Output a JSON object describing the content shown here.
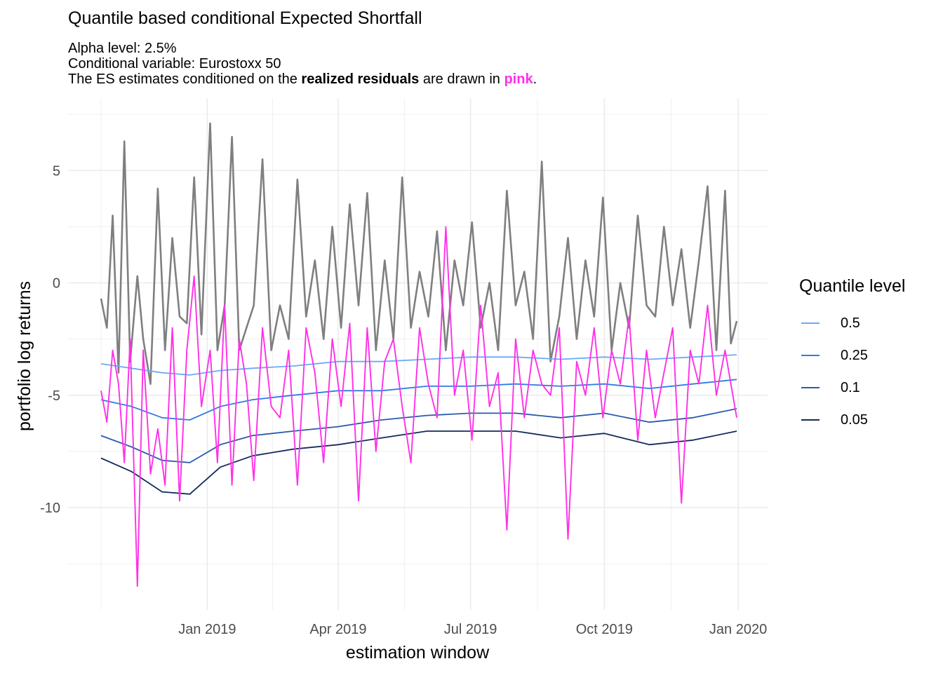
{
  "title": "Quantile based conditional Expected Shortfall",
  "subtitle": {
    "line1": "Alpha level: 2.5%",
    "line2": "Conditional variable: Eurostoxx 50",
    "line3_pre": "The ES estimates conditioned on the ",
    "line3_bold": "realized residuals",
    "line3_mid": " are drawn in ",
    "line3_pink": "pink",
    "line3_post": "."
  },
  "legend": {
    "title": "Quantile level",
    "items": [
      {
        "label": "0.5",
        "color": "#6aaaf7"
      },
      {
        "label": "0.25",
        "color": "#2f7be3"
      },
      {
        "label": "0.1",
        "color": "#2a5aaa"
      },
      {
        "label": "0.05",
        "color": "#132b5c"
      }
    ]
  },
  "colors": {
    "returns": "#7f7f7f",
    "es_realized": "#ff30e8",
    "grid": "#ebebeb",
    "axis_text": "#4d4d4d"
  },
  "chart_data": {
    "type": "line",
    "xlabel": "estimation window",
    "ylabel": "portfolio log returns",
    "x_range": [
      "2018-10-20",
      "2019-12-31"
    ],
    "ylim": [
      -14.5,
      7.5
    ],
    "x_ticks": [
      {
        "date": "2019-01-01",
        "label": "Jan 2019"
      },
      {
        "date": "2019-04-01",
        "label": "Apr 2019"
      },
      {
        "date": "2019-07-01",
        "label": "Jul 2019"
      },
      {
        "date": "2019-10-01",
        "label": "Oct 2019"
      },
      {
        "date": "2020-01-01",
        "label": "Jan 2020"
      }
    ],
    "y_ticks": [
      5,
      0,
      -5,
      -10
    ],
    "y_minor": [
      7.5,
      2.5,
      -2.5,
      -7.5,
      -12.5
    ],
    "grid": true,
    "legend_position": "right",
    "series": [
      {
        "id": "returns",
        "x": [
          "2018-10-20",
          "2018-10-24",
          "2018-10-28",
          "2018-11-01",
          "2018-11-05",
          "2018-11-09",
          "2018-11-14",
          "2018-11-18",
          "2018-11-23",
          "2018-11-28",
          "2018-12-03",
          "2018-12-08",
          "2018-12-13",
          "2018-12-18",
          "2018-12-23",
          "2018-12-28",
          "2019-01-03",
          "2019-01-08",
          "2019-01-13",
          "2019-01-18",
          "2019-01-23",
          "2019-01-28",
          "2019-02-02",
          "2019-02-08",
          "2019-02-14",
          "2019-02-20",
          "2019-02-26",
          "2019-03-04",
          "2019-03-10",
          "2019-03-16",
          "2019-03-22",
          "2019-03-28",
          "2019-04-03",
          "2019-04-09",
          "2019-04-15",
          "2019-04-21",
          "2019-04-27",
          "2019-05-03",
          "2019-05-09",
          "2019-05-15",
          "2019-05-21",
          "2019-05-27",
          "2019-06-02",
          "2019-06-08",
          "2019-06-14",
          "2019-06-20",
          "2019-06-26",
          "2019-07-02",
          "2019-07-08",
          "2019-07-14",
          "2019-07-20",
          "2019-07-26",
          "2019-08-01",
          "2019-08-07",
          "2019-08-13",
          "2019-08-19",
          "2019-08-25",
          "2019-08-31",
          "2019-09-06",
          "2019-09-12",
          "2019-09-18",
          "2019-09-24",
          "2019-09-30",
          "2019-10-06",
          "2019-10-12",
          "2019-10-18",
          "2019-10-24",
          "2019-10-30",
          "2019-11-05",
          "2019-11-11",
          "2019-11-17",
          "2019-11-23",
          "2019-11-29",
          "2019-12-05",
          "2019-12-11",
          "2019-12-17",
          "2019-12-23",
          "2019-12-27",
          "2019-12-31"
        ],
        "y": [
          -0.7,
          -2.0,
          3.0,
          -4.0,
          6.3,
          -3.5,
          0.3,
          -2.5,
          -4.5,
          4.2,
          -3.0,
          2.0,
          -1.5,
          -1.8,
          4.7,
          -2.3,
          7.1,
          -3.0,
          -1.0,
          6.5,
          -3.0,
          -2.0,
          -1.0,
          5.5,
          -3.0,
          -1.0,
          -2.5,
          4.6,
          -1.5,
          1.0,
          -2.5,
          2.5,
          -2.0,
          3.5,
          -1.0,
          4.0,
          -3.0,
          1.0,
          -2.5,
          4.7,
          -2.0,
          0.5,
          -1.5,
          2.3,
          -3.0,
          1.0,
          -1.0,
          2.7,
          -2.0,
          0.0,
          -3.0,
          4.1,
          -1.0,
          0.5,
          -2.5,
          5.4,
          -3.5,
          -1.5,
          2.0,
          -2.5,
          1.0,
          -1.5,
          3.8,
          -3.0,
          0.0,
          -2.0,
          3.0,
          -1.0,
          -1.5,
          2.5,
          -1.0,
          1.5,
          -2.0,
          1.0,
          4.3,
          -3.0,
          4.1,
          -2.7,
          -1.7
        ]
      },
      {
        "id": "es_realized",
        "x": [
          "2018-10-20",
          "2018-10-24",
          "2018-10-28",
          "2018-11-01",
          "2018-11-05",
          "2018-11-09",
          "2018-11-14",
          "2018-11-18",
          "2018-11-23",
          "2018-11-28",
          "2018-12-03",
          "2018-12-08",
          "2018-12-13",
          "2018-12-18",
          "2018-12-23",
          "2018-12-28",
          "2019-01-03",
          "2019-01-08",
          "2019-01-13",
          "2019-01-18",
          "2019-01-23",
          "2019-01-28",
          "2019-02-02",
          "2019-02-08",
          "2019-02-14",
          "2019-02-20",
          "2019-02-26",
          "2019-03-04",
          "2019-03-10",
          "2019-03-16",
          "2019-03-22",
          "2019-03-28",
          "2019-04-03",
          "2019-04-09",
          "2019-04-15",
          "2019-04-21",
          "2019-04-27",
          "2019-05-03",
          "2019-05-09",
          "2019-05-15",
          "2019-05-21",
          "2019-05-27",
          "2019-06-02",
          "2019-06-08",
          "2019-06-14",
          "2019-06-20",
          "2019-06-26",
          "2019-07-02",
          "2019-07-08",
          "2019-07-14",
          "2019-07-20",
          "2019-07-26",
          "2019-08-01",
          "2019-08-07",
          "2019-08-13",
          "2019-08-19",
          "2019-08-25",
          "2019-08-31",
          "2019-09-06",
          "2019-09-12",
          "2019-09-18",
          "2019-09-24",
          "2019-09-30",
          "2019-10-06",
          "2019-10-12",
          "2019-10-18",
          "2019-10-24",
          "2019-10-30",
          "2019-11-05",
          "2019-11-11",
          "2019-11-17",
          "2019-11-23",
          "2019-11-29",
          "2019-12-05",
          "2019-12-11",
          "2019-12-17",
          "2019-12-23",
          "2019-12-27",
          "2019-12-31"
        ],
        "y": [
          -4.8,
          -6.2,
          -3.0,
          -4.5,
          -8.0,
          -2.5,
          -13.5,
          -3.0,
          -8.5,
          -6.5,
          -9.0,
          -2.0,
          -9.7,
          -3.0,
          0.3,
          -5.5,
          -3.0,
          -8.0,
          -1.0,
          -9.0,
          -2.5,
          -4.5,
          -8.8,
          -2.0,
          -5.5,
          -6.0,
          -3.0,
          -9.0,
          -2.0,
          -4.0,
          -8.0,
          -2.5,
          -5.5,
          -1.8,
          -9.7,
          -2.0,
          -7.5,
          -3.5,
          -2.5,
          -5.5,
          -8.0,
          -2.0,
          -4.5,
          -6.0,
          2.5,
          -5.0,
          -3.0,
          -7.0,
          -1.0,
          -5.5,
          -4.0,
          -11.0,
          -2.5,
          -6.0,
          -3.0,
          -4.5,
          -5.0,
          -2.0,
          -11.4,
          -3.5,
          -5.0,
          -2.0,
          -6.0,
          -3.0,
          -4.5,
          -1.5,
          -7.0,
          -3.0,
          -6.0,
          -4.0,
          -2.0,
          -9.8,
          -3.0,
          -4.5,
          -1.0,
          -5.0,
          -3.0,
          -4.5,
          -6.0
        ]
      },
      {
        "id": "q0.5",
        "name": "0.5",
        "x": [
          "2018-10-20",
          "2018-11-10",
          "2018-12-01",
          "2018-12-20",
          "2019-01-10",
          "2019-02-01",
          "2019-03-01",
          "2019-04-01",
          "2019-05-01",
          "2019-06-01",
          "2019-07-01",
          "2019-08-01",
          "2019-09-01",
          "2019-10-01",
          "2019-11-01",
          "2019-12-01",
          "2019-12-31"
        ],
        "y": [
          -3.6,
          -3.8,
          -4.0,
          -4.1,
          -3.9,
          -3.8,
          -3.7,
          -3.5,
          -3.5,
          -3.4,
          -3.3,
          -3.3,
          -3.4,
          -3.3,
          -3.4,
          -3.3,
          -3.2
        ]
      },
      {
        "id": "q0.25",
        "name": "0.25",
        "x": [
          "2018-10-20",
          "2018-11-10",
          "2018-12-01",
          "2018-12-20",
          "2019-01-10",
          "2019-02-01",
          "2019-03-01",
          "2019-04-01",
          "2019-05-01",
          "2019-06-01",
          "2019-07-01",
          "2019-08-01",
          "2019-09-01",
          "2019-10-01",
          "2019-11-01",
          "2019-12-01",
          "2019-12-31"
        ],
        "y": [
          -5.2,
          -5.5,
          -6.0,
          -6.1,
          -5.5,
          -5.2,
          -5.0,
          -4.8,
          -4.8,
          -4.6,
          -4.6,
          -4.5,
          -4.6,
          -4.5,
          -4.7,
          -4.5,
          -4.3
        ]
      },
      {
        "id": "q0.1",
        "name": "0.1",
        "x": [
          "2018-10-20",
          "2018-11-10",
          "2018-12-01",
          "2018-12-20",
          "2019-01-10",
          "2019-02-01",
          "2019-03-01",
          "2019-04-01",
          "2019-05-01",
          "2019-06-01",
          "2019-07-01",
          "2019-08-01",
          "2019-09-01",
          "2019-10-01",
          "2019-11-01",
          "2019-12-01",
          "2019-12-31"
        ],
        "y": [
          -6.8,
          -7.3,
          -7.9,
          -8.0,
          -7.2,
          -6.8,
          -6.6,
          -6.4,
          -6.1,
          -5.9,
          -5.8,
          -5.8,
          -6.0,
          -5.8,
          -6.2,
          -6.0,
          -5.6
        ]
      },
      {
        "id": "q0.05",
        "name": "0.05",
        "x": [
          "2018-10-20",
          "2018-11-10",
          "2018-12-01",
          "2018-12-20",
          "2019-01-10",
          "2019-02-01",
          "2019-03-01",
          "2019-04-01",
          "2019-05-01",
          "2019-06-01",
          "2019-07-01",
          "2019-08-01",
          "2019-09-01",
          "2019-10-01",
          "2019-11-01",
          "2019-12-01",
          "2019-12-31"
        ],
        "y": [
          -7.8,
          -8.4,
          -9.3,
          -9.4,
          -8.2,
          -7.7,
          -7.4,
          -7.2,
          -6.9,
          -6.6,
          -6.6,
          -6.6,
          -6.9,
          -6.7,
          -7.2,
          -7.0,
          -6.6
        ]
      }
    ]
  }
}
